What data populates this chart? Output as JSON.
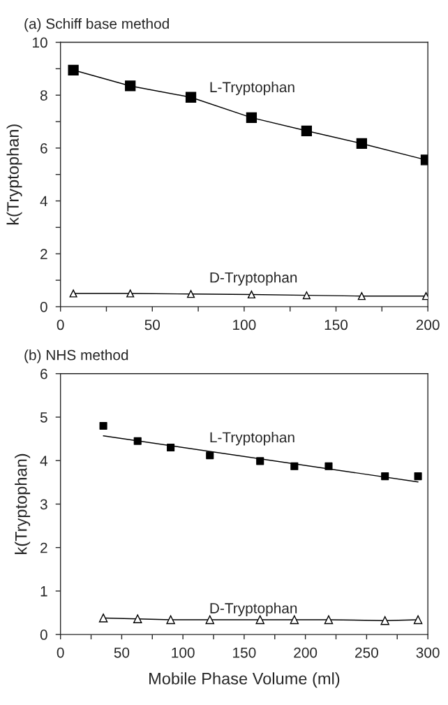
{
  "chart_data": [
    {
      "type": "line",
      "title": "(a) Schiff base method",
      "ylabel": "k(Tryptophan)",
      "xlim": [
        0,
        200
      ],
      "ylim": [
        0,
        10
      ],
      "xticks": [
        0,
        {
          "value": 25,
          "label": null
        },
        50,
        {
          "value": 75,
          "label": null
        },
        100,
        {
          "value": 125,
          "label": null
        },
        150,
        {
          "value": 175,
          "label": null
        },
        200
      ],
      "yticks": [
        0,
        {
          "value": 1,
          "label": null
        },
        2,
        {
          "value": 3,
          "label": null
        },
        4,
        {
          "value": 5,
          "label": null
        },
        6,
        {
          "value": 7,
          "label": null
        },
        8,
        {
          "value": 9,
          "label": null
        },
        10
      ],
      "grid": false,
      "series": [
        {
          "color": "#000000",
          "marker": "square",
          "x": [
            7,
            38,
            71,
            104,
            134,
            164,
            199
          ],
          "values": [
            8.95,
            8.35,
            7.92,
            7.15,
            6.65,
            6.17,
            5.55
          ]
        },
        {
          "color": "#000000",
          "marker": "triangle",
          "x": [
            7,
            38,
            71,
            104,
            134,
            164,
            199
          ],
          "values": [
            0.5,
            0.5,
            0.48,
            0.46,
            0.43,
            0.4,
            0.4
          ]
        }
      ],
      "annotations": [
        "L-Tryptophan",
        "D-Tryptophan"
      ]
    },
    {
      "type": "scatter",
      "title": "(b) NHS method",
      "xlabel": "Mobile Phase Volume (ml)",
      "ylabel": "k(Tryptophan)",
      "xlim": [
        0,
        300
      ],
      "ylim": [
        0,
        6
      ],
      "xticks": [
        0,
        {
          "value": 25,
          "label": null
        },
        50,
        {
          "value": 75,
          "label": null
        },
        100,
        {
          "value": 125,
          "label": null
        },
        150,
        {
          "value": 175,
          "label": null
        },
        200,
        {
          "value": 225,
          "label": null
        },
        250,
        {
          "value": 275,
          "label": null
        },
        300
      ],
      "yticks": [
        0,
        1,
        2,
        3,
        4,
        5,
        6
      ],
      "grid": false,
      "series": [
        {
          "color": "#000000",
          "marker": "square",
          "x": [
            35,
            63,
            90,
            122,
            163,
            191,
            219,
            265,
            292
          ],
          "values": [
            4.8,
            4.45,
            4.3,
            4.12,
            3.99,
            3.87,
            3.87,
            3.64,
            3.64
          ]
        },
        {
          "type": "line",
          "color": "#000000",
          "marker": "none",
          "x": [
            35,
            292
          ],
          "values": [
            4.57,
            3.51
          ]
        },
        {
          "type": "line",
          "color": "#000000",
          "marker": "triangle",
          "x": [
            35,
            63,
            90,
            122,
            163,
            191,
            219,
            265,
            292
          ],
          "values": [
            0.38,
            0.36,
            0.34,
            0.34,
            0.34,
            0.34,
            0.34,
            0.32,
            0.34
          ]
        }
      ],
      "annotations": [
        "L-Tryptophan",
        "D-Tryptophan"
      ]
    }
  ]
}
